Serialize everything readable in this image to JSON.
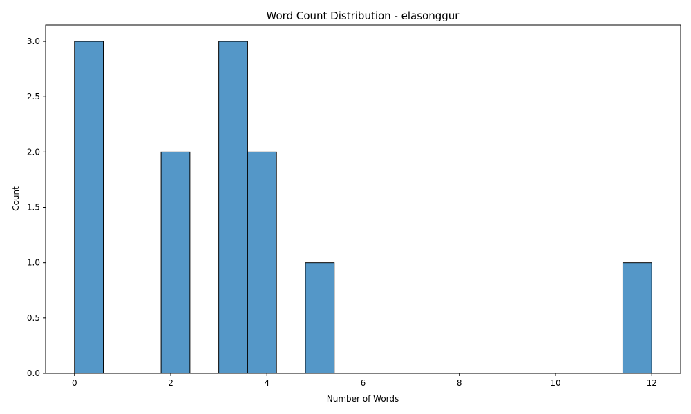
{
  "chart_data": {
    "type": "bar",
    "title": "Word Count Distribution - elasonggur",
    "xlabel": "Number of Words",
    "ylabel": "Count",
    "xlim": [
      -0.6,
      12.6
    ],
    "ylim": [
      0,
      3.15
    ],
    "x_ticks": [
      0,
      2,
      4,
      6,
      8,
      10,
      12
    ],
    "y_ticks": [
      0.0,
      0.5,
      1.0,
      1.5,
      2.0,
      2.5,
      3.0
    ],
    "bins": [
      {
        "start": 0.0,
        "end": 0.6,
        "count": 3
      },
      {
        "start": 1.8,
        "end": 2.4,
        "count": 2
      },
      {
        "start": 3.0,
        "end": 3.6,
        "count": 3
      },
      {
        "start": 3.6,
        "end": 4.2,
        "count": 2
      },
      {
        "start": 4.8,
        "end": 5.4,
        "count": 1
      },
      {
        "start": 11.4,
        "end": 12.0,
        "count": 1
      }
    ],
    "bar_color": "#5497c8",
    "edge_color": "#000000",
    "grid": false,
    "legend": null
  }
}
